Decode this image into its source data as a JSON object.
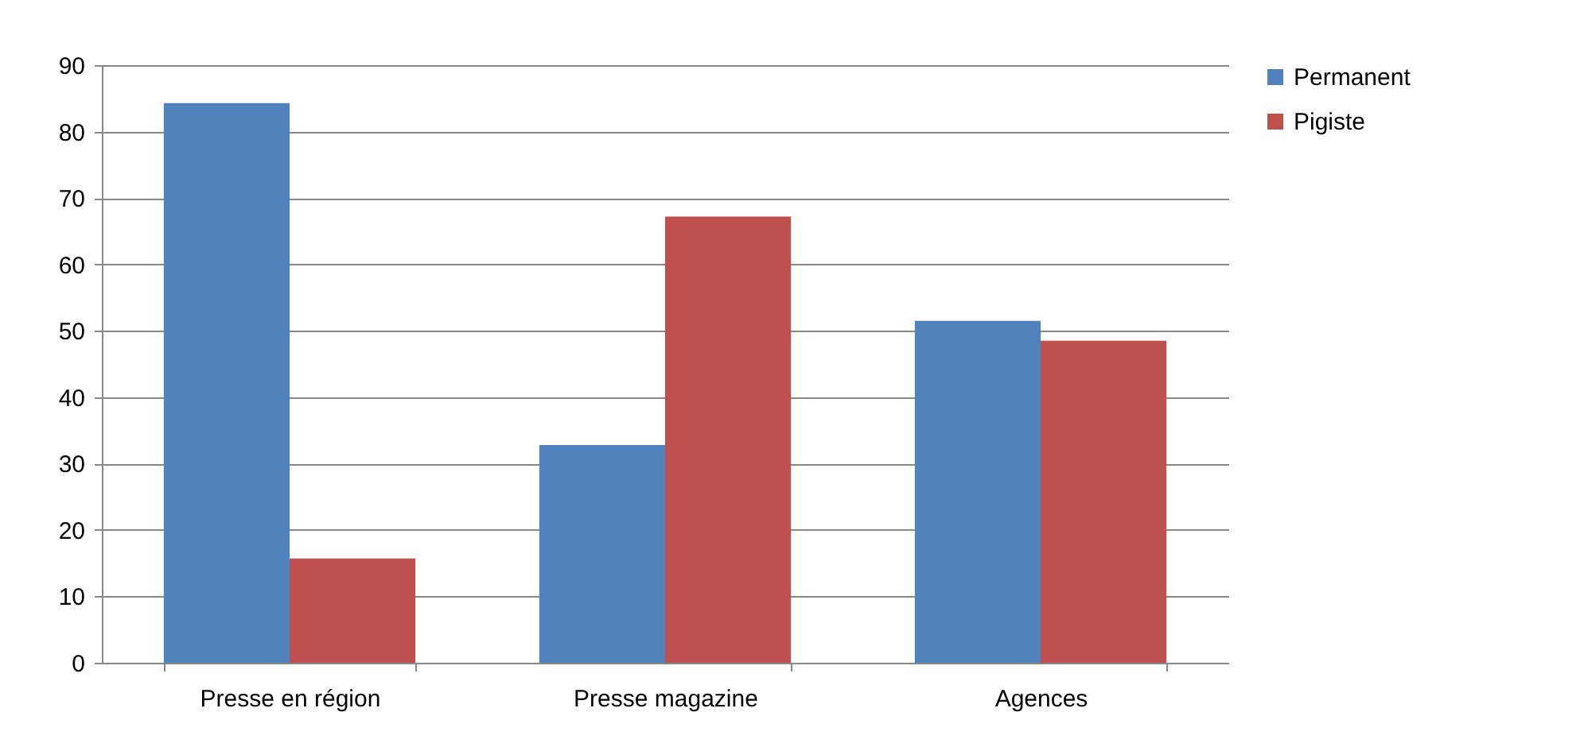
{
  "chart_data": {
    "type": "bar",
    "categories": [
      "Presse en région",
      "Presse magazine",
      "Agences"
    ],
    "series": [
      {
        "name": "Permanent",
        "color": "#4f81bd",
        "values": [
          84.3,
          32.8,
          51.5
        ]
      },
      {
        "name": "Pigiste",
        "color": "#c0504d",
        "values": [
          15.7,
          67.2,
          48.5
        ]
      }
    ],
    "ylim": [
      0,
      90
    ],
    "yticks": [
      0,
      10,
      20,
      30,
      40,
      50,
      60,
      70,
      80,
      90
    ],
    "grid": "y",
    "legend": "right"
  }
}
